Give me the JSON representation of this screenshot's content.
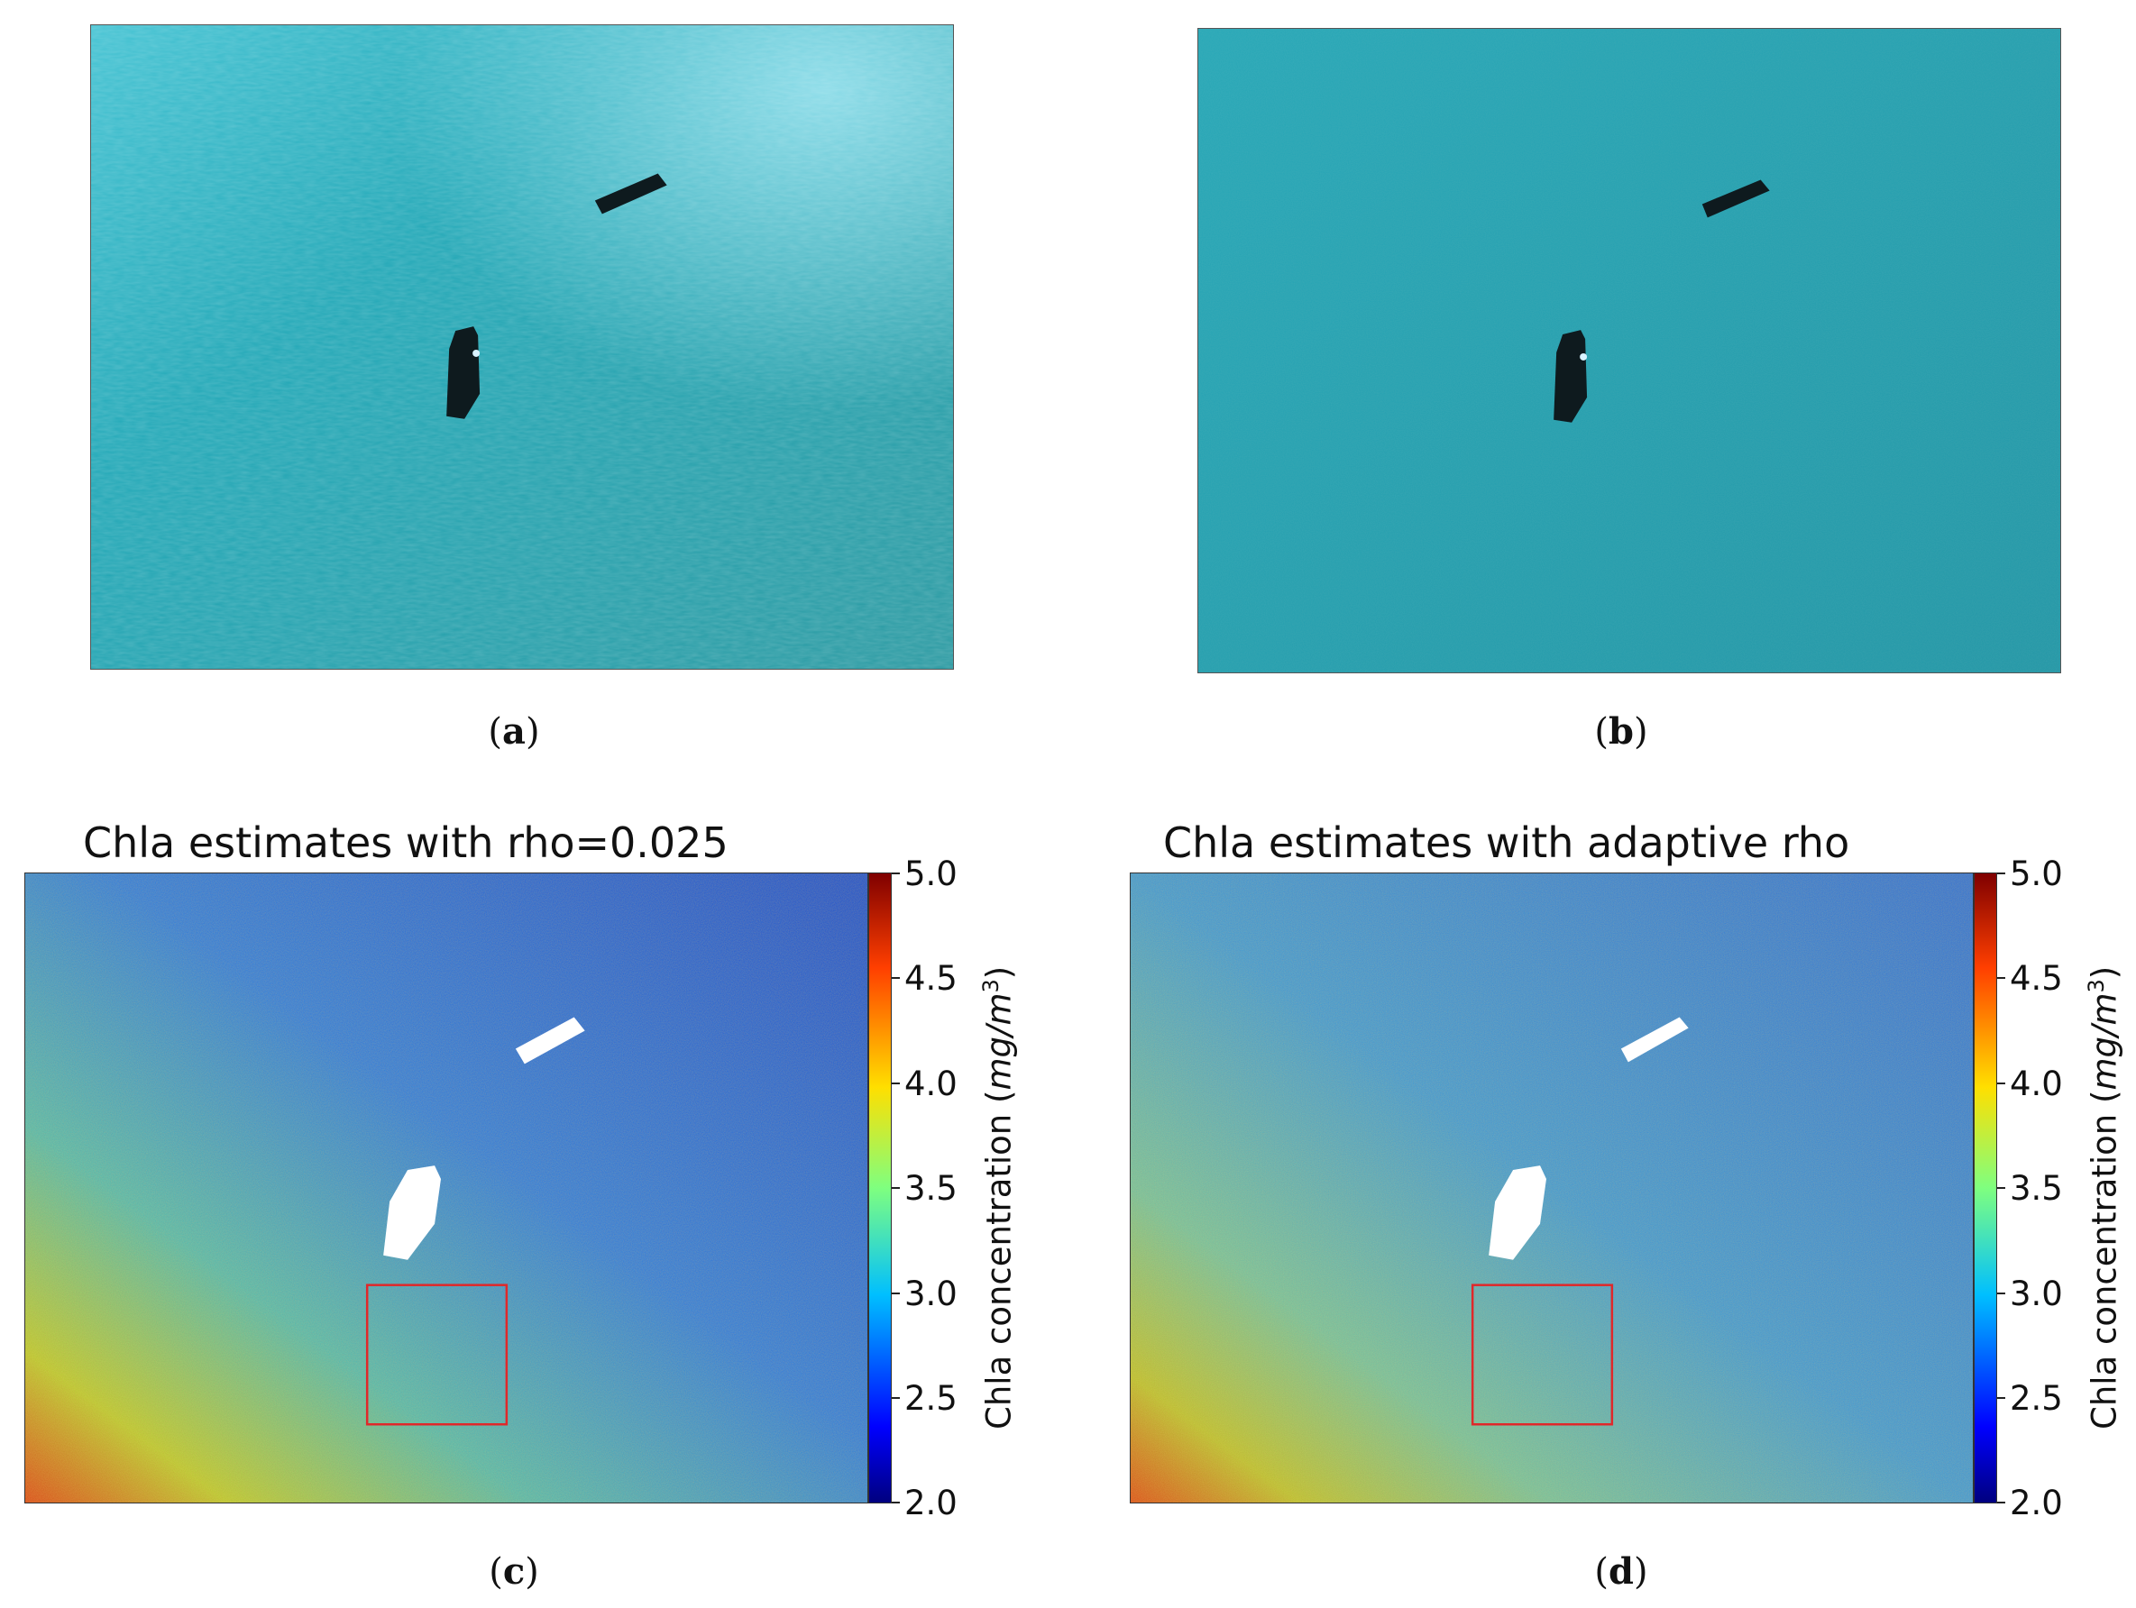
{
  "panels": [
    {
      "id": "a",
      "caption_open": "(",
      "caption_letter": "a",
      "caption_close": ")"
    },
    {
      "id": "b",
      "caption_open": "(",
      "caption_letter": "b",
      "caption_close": ")"
    },
    {
      "id": "c",
      "caption_open": "(",
      "caption_letter": "c",
      "caption_close": ")",
      "title": "Chla estimates with rho=0.025"
    },
    {
      "id": "d",
      "caption_open": "(",
      "caption_letter": "d",
      "caption_close": ")",
      "title": "Chla estimates with adaptive rho"
    }
  ],
  "colorbar": {
    "label_prefix": "Chla concentration (",
    "label_unit": "mg/m",
    "label_exp": "3",
    "label_suffix": ")",
    "ticks": [
      "5.0",
      "4.5",
      "4.0",
      "3.5",
      "3.0",
      "2.5",
      "2.0"
    ],
    "range": [
      2.0,
      5.0
    ],
    "colormap": "jet"
  },
  "colors": {
    "water": "#1fa3b3",
    "ship": "#0e1a1e",
    "roi_box": "#e0282a"
  }
}
